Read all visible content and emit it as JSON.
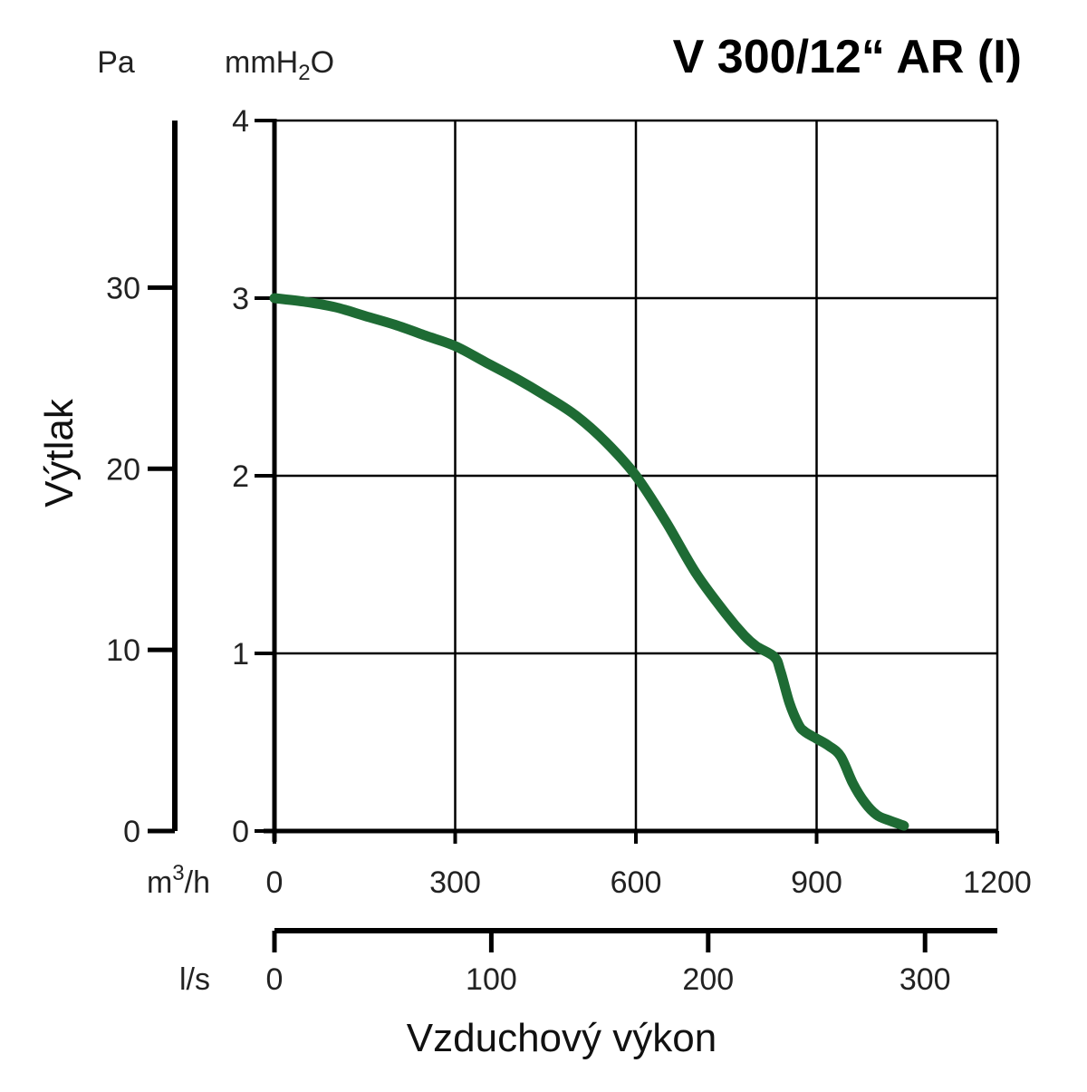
{
  "chart_data": {
    "type": "line",
    "title": "V 300/12“ AR (I)",
    "ylabel": "Výtlak",
    "xlabel": "Vzduchový výkon",
    "x_unit": "m³/h",
    "x_unit_base": "m",
    "x_unit_sup": "3",
    "x_unit_tail": "/h",
    "y_unit": "mmH₂O",
    "y_unit_base": "mmH",
    "y_unit_sub": "2",
    "y_unit_tail": "O",
    "y2_unit": "Pa",
    "x2_unit": "l/s",
    "xlim": [
      0,
      1200
    ],
    "ylim": [
      0,
      4
    ],
    "x_ticks": [
      0,
      300,
      600,
      900,
      1200
    ],
    "y_ticks": [
      0,
      1,
      2,
      3,
      4
    ],
    "y2_ticks": [
      0,
      10,
      20,
      30
    ],
    "x2_ticks": [
      0,
      100,
      200,
      300
    ],
    "grid": true,
    "series": [
      {
        "color": "#1e6b34",
        "x": [
          0,
          50,
          100,
          150,
          200,
          250,
          300,
          350,
          400,
          450,
          500,
          550,
          600,
          650,
          700,
          750,
          780,
          800,
          830,
          840,
          855,
          870,
          880,
          900,
          920,
          940,
          960,
          980,
          1000,
          1020,
          1045
        ],
        "y": [
          3.0,
          2.98,
          2.95,
          2.9,
          2.85,
          2.79,
          2.73,
          2.64,
          2.55,
          2.45,
          2.34,
          2.19,
          2.0,
          1.74,
          1.45,
          1.22,
          1.1,
          1.04,
          0.98,
          0.9,
          0.72,
          0.6,
          0.56,
          0.52,
          0.48,
          0.42,
          0.27,
          0.16,
          0.09,
          0.06,
          0.03
        ]
      }
    ]
  },
  "colors": {
    "curve": "#1e6b34",
    "grid": "#000000",
    "background": "#ffffff"
  }
}
